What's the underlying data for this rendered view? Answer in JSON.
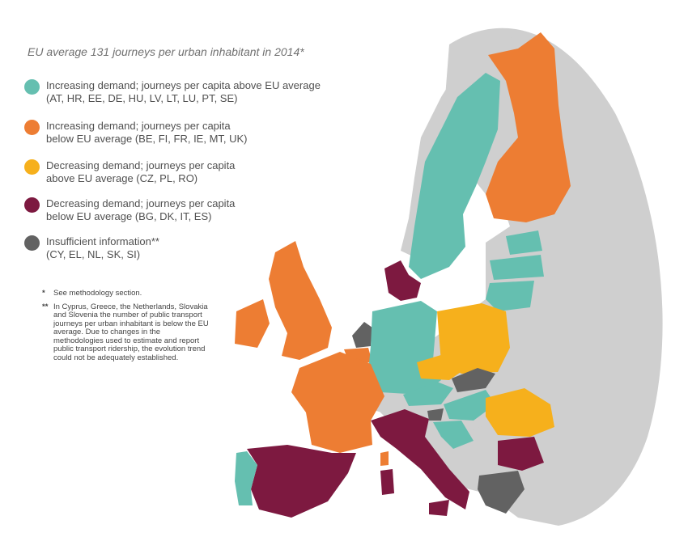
{
  "title": "EU average 131 journeys per urban inhabitant in 2014*",
  "colors": {
    "teal": "#65bfb0",
    "orange": "#ed7d33",
    "yellow": "#f6b01c",
    "maroon": "#7d1940",
    "dark_gray": "#626262",
    "light_gray": "#cfcfcf"
  },
  "legend": [
    {
      "line1": "Increasing demand; journeys per capita above EU average",
      "line2": "(AT, HR, EE, DE, HU, LV, LT, LU, PT, SE)"
    },
    {
      "line1": "Increasing demand; journeys per capita",
      "line2": "below EU average (BE, FI, FR, IE, MT, UK)"
    },
    {
      "line1": "Decreasing demand; journeys per capita",
      "line2": "above EU average (CZ, PL, RO)"
    },
    {
      "line1": "Decreasing demand; journeys per capita",
      "line2": "below EU average (BG, DK, IT, ES)"
    },
    {
      "line1": "Insufficient information**",
      "line2": "(CY, EL, NL, SK, SI)"
    }
  ],
  "notes": [
    {
      "mark": "*",
      "text": "See methodology section."
    },
    {
      "mark": "**",
      "text": "In Cyprus, Greece, the Netherlands, Slovakia and Slovenia the number of public transport journeys per urban inhabitant is below the EU average. Due to changes in the methodologies used to estimate and report public transport ridership, the evolution trend could not be adequately established."
    }
  ]
}
